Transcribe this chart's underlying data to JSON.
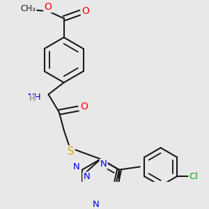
{
  "bg_color": "#e8e8e8",
  "bond_color": "#1a1a1a",
  "bond_width": 1.5,
  "atom_colors": {
    "O": "#ff0000",
    "N": "#0000ee",
    "S": "#ccaa00",
    "Cl": "#00aa00",
    "C": "#1a1a1a",
    "H": "#777777"
  },
  "font_size": 8.5,
  "fig_width": 3.0,
  "fig_height": 3.0,
  "dpi": 100
}
